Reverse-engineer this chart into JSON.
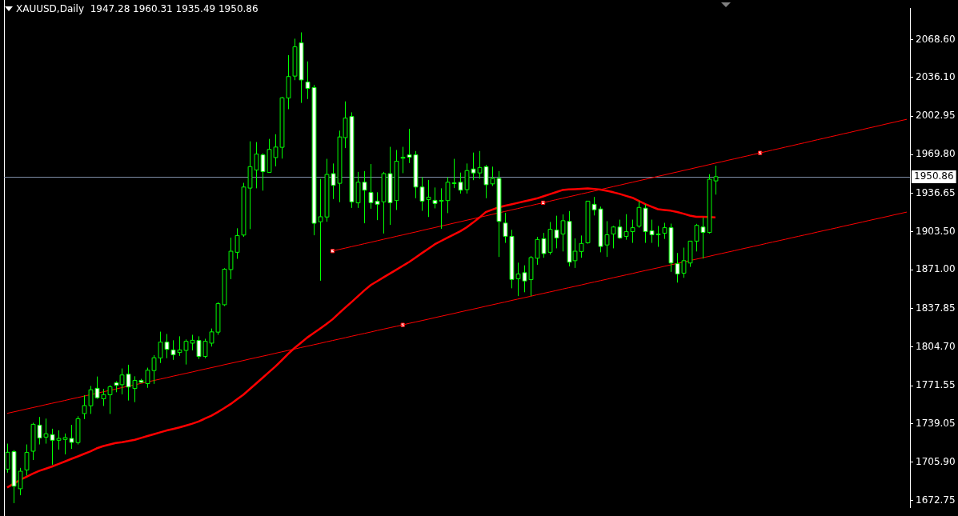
{
  "chart_data": {
    "type": "candlestick",
    "title": "XAUUSD,Daily  1947.28 1960.31 1935.49 1950.86",
    "color": "#00ff00",
    "colors": [
      "#000000",
      "#ffffff",
      "#000000",
      "#000000",
      "#000000",
      "#ffffff",
      "#000000",
      "#ffffff",
      "#000000",
      "#000000",
      "#ffffff",
      "#000000",
      "#000000",
      "#000000",
      "#ffffff",
      "#000000",
      "#000000",
      "#ffffff",
      "#000000",
      "#ffffff",
      "#000000",
      "#ffffff",
      "#000000",
      "#000000",
      "#000000",
      "#ffffff",
      "#ffffff",
      "#000000",
      "#000000",
      "#000000",
      "#ffffff",
      "#000000",
      "#000000",
      "#000000",
      "#000000",
      "#000000",
      "#000000",
      "#000000",
      "#000000",
      "#000000",
      "#ffffff",
      "#000000",
      "#000000",
      "#000000",
      "#000000",
      "#000000",
      "#ffffff",
      "#ffffff",
      "#ffffff",
      "#000000",
      "#000000",
      "#ffffff",
      "#000000",
      "#000000",
      "#ffffff",
      "#000000",
      "#ffffff",
      "#ffffff",
      "#ffffff",
      "#000000",
      "#ffffff",
      "#000000",
      "#000000",
      "#ffffff",
      "#ffffff",
      "#ffffff",
      "#000000",
      "#ffffff",
      "#000000",
      "#000000",
      "#000000",
      "#ffffff",
      "#000000",
      "#ffffff",
      "#000000",
      "#ffffff",
      "#000000",
      "#ffffff",
      "#ffffff",
      "#ffffff",
      "#000000",
      "#ffffff",
      "#000000",
      "#000000",
      "#ffffff",
      "#000000",
      "#ffffff",
      "#000000",
      "#ffffff",
      "#000000",
      "#000000",
      "#000000",
      "#ffffff",
      "#ffffff",
      "#000000",
      "#000000",
      "#ffffff",
      "#000000",
      "#000000",
      "#000000",
      "#ffffff",
      "#ffffff",
      "#000000",
      "#000000",
      "#ffffff",
      "#ffffff",
      "#000000",
      "#000000",
      "#000000",
      "#ffffff",
      "#000000",
      "#000000",
      null,
      null,
      null,
      null,
      null,
      null,
      null,
      null,
      null,
      null,
      null,
      null,
      null,
      null,
      null,
      null,
      null,
      null,
      null,
      null,
      null,
      null,
      null,
      null,
      null,
      null,
      null,
      null,
      null,
      null
    ],
    "categories": [
      null,
      null,
      null,
      null,
      null,
      null,
      null,
      null,
      null,
      null,
      null,
      null,
      null,
      null,
      null,
      null,
      null,
      null,
      null,
      null,
      null,
      null,
      null,
      null,
      null,
      null,
      null,
      null,
      null,
      null,
      null,
      null,
      null,
      null,
      null,
      null,
      null,
      null,
      null,
      null,
      null,
      null,
      null,
      null,
      null,
      null,
      null,
      null,
      null,
      null,
      null,
      null,
      null,
      null,
      null,
      null,
      null,
      null,
      null,
      null,
      null,
      null,
      null,
      null,
      null,
      null,
      null,
      null,
      null,
      null,
      null,
      null,
      null,
      null,
      null,
      null,
      null,
      null,
      null,
      null,
      null,
      null,
      null,
      null,
      null,
      null,
      null,
      null,
      null,
      null,
      null,
      null,
      null,
      null,
      null,
      null,
      null,
      null,
      null,
      null,
      null,
      null,
      null,
      null,
      null,
      null,
      null,
      null,
      null,
      null,
      null,
      null,
      null,
      null,
      null,
      null,
      null,
      null,
      null,
      null,
      null,
      null,
      null,
      null,
      null,
      null,
      null,
      null,
      null,
      null,
      null,
      null,
      null,
      null,
      null,
      null,
      null,
      null,
      null,
      null,
      null,
      null
    ],
    "ohlc": [
      [
        1699.9,
        1721.8,
        1696.9,
        1714.4
      ],
      [
        1714.9,
        1716.2,
        1670.7,
        1685.3
      ],
      [
        1683.1,
        1701.0,
        1677.5,
        1698.1
      ],
      [
        1699.2,
        1721.1,
        1694.3,
        1714.2
      ],
      [
        1715.3,
        1739.7,
        1707.7,
        1738.4
      ],
      [
        1737.7,
        1744.7,
        1721.1,
        1726.7
      ],
      [
        1727.4,
        1743.3,
        1721.8,
        1730.3
      ],
      [
        1729.6,
        1734.6,
        1703.7,
        1724.7
      ],
      [
        1724.7,
        1733.2,
        1716.7,
        1726.3
      ],
      [
        1725.4,
        1730.5,
        1712.6,
        1727.0
      ],
      [
        1726.3,
        1737.9,
        1717.3,
        1722.9
      ],
      [
        1722.7,
        1745.3,
        1721.1,
        1743.1
      ],
      [
        1747.6,
        1763.3,
        1742.9,
        1754.5
      ],
      [
        1754.3,
        1771.3,
        1747.3,
        1768.0
      ],
      [
        1769.3,
        1779.4,
        1760.3,
        1761.2
      ],
      [
        1760.3,
        1768.8,
        1754.1,
        1763.9
      ],
      [
        1763.7,
        1772.0,
        1747.3,
        1770.6
      ],
      [
        1774.0,
        1775.3,
        1765.9,
        1771.8
      ],
      [
        1772.4,
        1786.3,
        1764.1,
        1780.7
      ],
      [
        1781.4,
        1789.5,
        1758.8,
        1770.4
      ],
      [
        1769.1,
        1779.6,
        1757.4,
        1776.0
      ],
      [
        1776.0,
        1777.4,
        1773.8,
        1774.4
      ],
      [
        1773.3,
        1787.0,
        1769.7,
        1784.8
      ],
      [
        1784.5,
        1797.7,
        1773.1,
        1795.5
      ],
      [
        1795.3,
        1817.9,
        1791.0,
        1808.9
      ],
      [
        1808.9,
        1815.9,
        1795.1,
        1802.7
      ],
      [
        1802.2,
        1810.5,
        1793.7,
        1798.0
      ],
      [
        1800.0,
        1813.9,
        1797.1,
        1802.2
      ],
      [
        1801.8,
        1811.2,
        1789.7,
        1809.6
      ],
      [
        1808.0,
        1815.2,
        1801.8,
        1810.5
      ],
      [
        1810.3,
        1813.9,
        1794.4,
        1796.6
      ],
      [
        1796.6,
        1811.8,
        1795.1,
        1809.6
      ],
      [
        1808.0,
        1820.6,
        1805.1,
        1817.7
      ],
      [
        1817.5,
        1843.2,
        1815.2,
        1841.9
      ],
      [
        1841.0,
        1872.4,
        1839.9,
        1871.5
      ],
      [
        1871.2,
        1898.6,
        1862.9,
        1886.9
      ],
      [
        1886.0,
        1906.6,
        1880.4,
        1900.4
      ],
      [
        1900.8,
        1945.6,
        1899.2,
        1942.0
      ],
      [
        1941.1,
        1981.2,
        1905.9,
        1959.5
      ],
      [
        1956.6,
        1980.6,
        1940.9,
        1970.3
      ],
      [
        1969.6,
        1970.9,
        1938.9,
        1955.2
      ],
      [
        1954.6,
        1983.3,
        1954.6,
        1974.3
      ],
      [
        1967.3,
        1987.3,
        1959.7,
        1976.3
      ],
      [
        1976.1,
        2019.3,
        1966.4,
        2018.6
      ],
      [
        2018.4,
        2055.2,
        2008.8,
        2036.8
      ],
      [
        2037.2,
        2069.3,
        2033.7,
        2062.3
      ],
      [
        2065.7,
        2074.7,
        2014.2,
        2033.9
      ],
      [
        2032.1,
        2049.8,
        2017.5,
        2026.7
      ],
      [
        2027.4,
        2029.6,
        1900.6,
        1910.9
      ],
      [
        1912.2,
        1949.0,
        1861.6,
        1916.5
      ],
      [
        1916.3,
        1966.2,
        1912.2,
        1952.8
      ],
      [
        1953.5,
        1962.2,
        1931.7,
        1943.4
      ],
      [
        1945.2,
        1990.4,
        1929.0,
        1985.0
      ],
      [
        1984.4,
        2015.5,
        1975.4,
        2001.2
      ],
      [
        2002.5,
        2006.1,
        1924.1,
        1929.3
      ],
      [
        1928.4,
        1955.0,
        1924.1,
        1946.1
      ],
      [
        1946.1,
        1955.7,
        1910.9,
        1939.3
      ],
      [
        1937.3,
        1961.7,
        1923.4,
        1928.6
      ],
      [
        1929.9,
        1937.5,
        1913.6,
        1927.2
      ],
      [
        1929.3,
        1955.0,
        1902.1,
        1953.5
      ],
      [
        1953.5,
        1976.5,
        1909.5,
        1928.6
      ],
      [
        1930.4,
        1973.8,
        1922.3,
        1964.2
      ],
      [
        1966.7,
        1976.5,
        1953.9,
        1967.6
      ],
      [
        1969.6,
        1992.0,
        1962.6,
        1967.6
      ],
      [
        1969.6,
        1972.9,
        1932.4,
        1942.0
      ],
      [
        1942.0,
        1950.5,
        1921.6,
        1929.9
      ],
      [
        1931.3,
        1948.1,
        1916.3,
        1933.3
      ],
      [
        1930.6,
        1941.6,
        1923.7,
        1927.9
      ],
      [
        1929.9,
        1940.9,
        1906.2,
        1930.6
      ],
      [
        1930.4,
        1950.5,
        1919.6,
        1946.1
      ],
      [
        1945.2,
        1966.2,
        1941.1,
        1945.6
      ],
      [
        1946.1,
        1954.4,
        1936.4,
        1939.3
      ],
      [
        1939.8,
        1962.2,
        1936.4,
        1956.1
      ],
      [
        1957.5,
        1971.6,
        1947.9,
        1954.1
      ],
      [
        1954.1,
        1972.9,
        1949.2,
        1958.8
      ],
      [
        1959.5,
        1960.9,
        1932.4,
        1944.0
      ],
      [
        1944.7,
        1959.5,
        1942.9,
        1949.4
      ],
      [
        1949.4,
        1955.7,
        1882.0,
        1912.5
      ],
      [
        1911.1,
        1919.8,
        1894.1,
        1899.7
      ],
      [
        1899.7,
        1905.3,
        1855.1,
        1862.7
      ],
      [
        1863.2,
        1877.1,
        1848.4,
        1867.4
      ],
      [
        1868.5,
        1874.8,
        1851.7,
        1861.4
      ],
      [
        1862.5,
        1882.9,
        1848.4,
        1881.5
      ],
      [
        1880.9,
        1899.2,
        1875.3,
        1897.0
      ],
      [
        1897.7,
        1902.6,
        1881.3,
        1884.9
      ],
      [
        1886.0,
        1912.0,
        1884.0,
        1905.7
      ],
      [
        1905.1,
        1917.4,
        1889.4,
        1898.3
      ],
      [
        1901.7,
        1918.5,
        1886.7,
        1913.1
      ],
      [
        1912.5,
        1921.4,
        1873.9,
        1877.5
      ],
      [
        1878.8,
        1897.9,
        1872.6,
        1886.9
      ],
      [
        1886.7,
        1900.4,
        1881.3,
        1893.6
      ],
      [
        1894.1,
        1929.9,
        1893.4,
        1929.9
      ],
      [
        1927.2,
        1933.5,
        1917.6,
        1922.5
      ],
      [
        1923.2,
        1925.2,
        1886.0,
        1891.0
      ],
      [
        1892.3,
        1912.7,
        1882.0,
        1901.0
      ],
      [
        1901.7,
        1908.6,
        1889.4,
        1907.7
      ],
      [
        1907.7,
        1914.0,
        1897.5,
        1898.3
      ],
      [
        1899.7,
        1918.7,
        1896.8,
        1903.7
      ],
      [
        1903.7,
        1914.0,
        1894.1,
        1907.1
      ],
      [
        1908.4,
        1929.9,
        1907.1,
        1924.5
      ],
      [
        1923.9,
        1927.2,
        1894.1,
        1903.7
      ],
      [
        1904.4,
        1914.0,
        1894.1,
        1901.0
      ],
      [
        1901.7,
        1908.6,
        1890.7,
        1901.7
      ],
      [
        1902.4,
        1911.3,
        1897.5,
        1907.1
      ],
      [
        1907.1,
        1910.6,
        1869.2,
        1876.8
      ],
      [
        1876.2,
        1885.4,
        1860.0,
        1867.4
      ],
      [
        1868.1,
        1890.0,
        1864.1,
        1878.8
      ],
      [
        1876.8,
        1895.6,
        1873.5,
        1895.6
      ],
      [
        1895.6,
        1910.4,
        1886.7,
        1909.1
      ],
      [
        1907.7,
        1915.8,
        1880.6,
        1903.0
      ],
      [
        1903.0,
        1953.0,
        1902.1,
        1948.7
      ],
      [
        1947.28,
        1960.31,
        1935.49,
        1950.86
      ],
      null,
      null,
      null,
      null,
      null,
      null,
      null,
      null,
      null,
      null,
      null,
      null,
      null,
      null,
      null,
      null,
      null,
      null,
      null,
      null,
      null,
      null,
      null,
      null,
      null,
      null,
      null,
      null,
      null,
      null
    ],
    "series": [
      {
        "type": "line",
        "color": "#ff0000",
        "marker": "none",
        "values": [
          1684.2,
          1687.4,
          1690.6,
          1693.3,
          1696.0,
          1698.4,
          1700.2,
          1702.1,
          1704.2,
          1706.4,
          1708.6,
          1710.7,
          1712.9,
          1715.1,
          1717.7,
          1719.6,
          1721.0,
          1722.4,
          1723.1,
          1724.0,
          1725.1,
          1726.7,
          1728.3,
          1729.9,
          1731.5,
          1733.1,
          1734.4,
          1735.7,
          1737.3,
          1738.9,
          1740.8,
          1743.3,
          1745.8,
          1748.9,
          1752.2,
          1755.7,
          1759.7,
          1763.7,
          1768.5,
          1773.3,
          1778.1,
          1783.0,
          1787.8,
          1793.2,
          1798.6,
          1803.7,
          1808.2,
          1812.7,
          1816.6,
          1820.3,
          1824.3,
          1828.5,
          1833.6,
          1838.6,
          1843.4,
          1848.4,
          1853.4,
          1857.9,
          1861.2,
          1864.5,
          1867.8,
          1871.1,
          1874.4,
          1877.7,
          1881.5,
          1885.3,
          1889.0,
          1892.8,
          1895.7,
          1898.5,
          1901.3,
          1904.0,
          1907.4,
          1911.4,
          1915.7,
          1920.5,
          1922.5,
          1924.5,
          1925.9,
          1927.1,
          1928.4,
          1929.7,
          1930.9,
          1932.2,
          1934.0,
          1935.8,
          1937.6,
          1939.4,
          1939.9,
          1940.2,
          1940.5,
          1940.8,
          1940.4,
          1939.8,
          1938.7,
          1937.5,
          1936.1,
          1934.4,
          1932.8,
          1930.1,
          1927.4,
          1925.1,
          1923.0,
          1922.3,
          1921.7,
          1920.6,
          1919.1,
          1917.5,
          1916.5,
          1916.4,
          1916.2,
          1916.0,
          null,
          null,
          null,
          null,
          null,
          null,
          null,
          null,
          null,
          null,
          null,
          null,
          null,
          null,
          null,
          null,
          null,
          null,
          null,
          null,
          null,
          null,
          null,
          null,
          null,
          null,
          null,
          null,
          null,
          null
        ]
      },
      {
        "type": "line",
        "color": "#ff0000",
        "marker": "none",
        "values": [
          1747.8,
          1749.0,
          1750.2,
          1751.5,
          1752.7,
          1753.9,
          1755.2,
          1756.4,
          1757.6,
          1758.8,
          1760.1,
          1761.3,
          1762.5,
          1763.7,
          1765.0,
          1766.2,
          1767.4,
          1768.6,
          1769.9,
          1771.1,
          1772.3,
          1773.5,
          1774.8,
          1776.0,
          1777.2,
          1778.4,
          1779.7,
          1780.9,
          1782.1,
          1783.3,
          1784.6,
          1785.8,
          1787.0,
          1788.2,
          1789.5,
          1790.7,
          1791.9,
          1793.1,
          1794.4,
          1795.6,
          1796.8,
          1798.0,
          1799.3,
          1800.5,
          1801.7,
          1802.9,
          1804.2,
          1805.4,
          1806.6,
          1807.8,
          1809.1,
          1810.3,
          1811.5,
          1812.7,
          1814.0,
          1815.2,
          1816.4,
          1817.6,
          1818.9,
          1820.1,
          1821.3,
          1822.5,
          1823.7,
          1825.0,
          1826.2,
          1827.4,
          1828.6,
          1829.9,
          1831.1,
          1832.3,
          1833.5,
          1834.8,
          1836.0,
          1837.2,
          1838.4,
          1839.7,
          1840.9,
          1842.1,
          1843.3,
          1844.6,
          1845.8,
          1847.0,
          1848.2,
          1849.5,
          1850.7,
          1851.9,
          1853.1,
          1854.4,
          1855.6,
          1856.8,
          1858.0,
          1859.3,
          1860.5,
          1861.7,
          1862.9,
          1864.2,
          1865.4,
          1866.6,
          1867.8,
          1869.1,
          1870.3,
          1871.5,
          1872.7,
          1874.0,
          1875.2,
          1876.4,
          1877.6,
          1878.9,
          1880.1,
          1881.3,
          1882.5,
          1883.8,
          1885.0,
          1886.2,
          1887.4,
          1888.7,
          1889.9,
          1891.1,
          1892.3,
          1893.6,
          1894.8,
          1896.0,
          1897.2,
          1898.5,
          1899.7,
          1900.9,
          1902.1,
          1903.4,
          1904.6,
          1905.8,
          1907.0,
          1908.3,
          1909.5,
          1910.7,
          1911.9,
          1913.2,
          1914.4,
          1915.6,
          1916.8,
          1918.1,
          1919.3,
          1920.5
        ]
      },
      {
        "type": "line",
        "color": "#ff0000",
        "marker": "none",
        "values": [
          null,
          null,
          null,
          null,
          null,
          null,
          null,
          null,
          null,
          null,
          null,
          null,
          null,
          null,
          null,
          null,
          null,
          null,
          null,
          null,
          null,
          null,
          null,
          null,
          null,
          null,
          null,
          null,
          null,
          null,
          null,
          null,
          null,
          null,
          null,
          null,
          null,
          null,
          null,
          null,
          null,
          null,
          null,
          null,
          null,
          null,
          null,
          null,
          null,
          null,
          null,
          1887.1,
          1888.4,
          1889.6,
          1890.9,
          1892.1,
          1893.4,
          1894.6,
          1895.9,
          1897.2,
          1898.4,
          1899.7,
          1900.9,
          1902.2,
          1903.4,
          1904.7,
          1906.0,
          1907.2,
          1908.5,
          1909.7,
          1911.0,
          1912.2,
          1913.5,
          1914.7,
          1916.0,
          1917.2,
          1918.5,
          1919.8,
          1921.0,
          1922.3,
          1923.5,
          1924.8,
          1926.0,
          1927.3,
          1928.5,
          1929.8,
          1931.1,
          1932.3,
          1933.6,
          1934.8,
          1936.1,
          1937.3,
          1938.6,
          1939.9,
          1941.1,
          1942.4,
          1943.6,
          1944.9,
          1946.1,
          1947.4,
          1948.6,
          1949.9,
          1951.2,
          1952.4,
          1953.7,
          1954.9,
          1956.2,
          1957.4,
          1958.7,
          1959.9,
          1961.2,
          1962.5,
          1963.7,
          1965.0,
          1966.2,
          1967.5,
          1968.7,
          1970.0,
          1971.3,
          1972.5,
          1973.8,
          1975.0,
          1976.3,
          1977.5,
          1978.8,
          1980.0,
          1981.3,
          1982.6,
          1983.8,
          1985.1,
          1986.3,
          1987.6,
          1988.8,
          1990.1,
          1991.3,
          1992.6,
          1993.8,
          1995.1,
          1996.4,
          1997.6,
          1998.9,
          2000.1
        ]
      },
      {
        "type": "scatter",
        "color": "#ffffff",
        "marker": "square",
        "values": [
          null,
          null,
          null,
          null,
          null,
          null,
          null,
          null,
          null,
          null,
          null,
          null,
          null,
          null,
          null,
          null,
          null,
          null,
          null,
          null,
          null,
          null,
          null,
          null,
          null,
          null,
          null,
          null,
          null,
          null,
          null,
          null,
          null,
          null,
          null,
          null,
          null,
          null,
          null,
          null,
          null,
          null,
          null,
          null,
          null,
          null,
          null,
          null,
          null,
          null,
          null,
          1887.1,
          null,
          null,
          null,
          null,
          null,
          null,
          null,
          null,
          null,
          null,
          1823.7,
          null,
          null,
          null,
          null,
          null,
          null,
          null,
          null,
          null,
          null,
          null,
          null,
          null,
          null,
          null,
          null,
          null,
          null,
          null,
          null,
          null,
          1928.5,
          null,
          null,
          null,
          null,
          null,
          null,
          null,
          null,
          null,
          null,
          null,
          null,
          null,
          null,
          null,
          null,
          null,
          null,
          null,
          null,
          null,
          null,
          null,
          null,
          null,
          null,
          null,
          null,
          null,
          null,
          null,
          null,
          null,
          1971.3,
          null,
          null,
          null,
          null,
          null,
          null,
          null,
          null,
          null,
          null,
          null,
          null,
          null,
          null,
          null,
          null,
          null,
          null,
          null,
          null,
          null,
          null,
          null
        ]
      }
    ],
    "ylim": [
      1666.7,
      2095.5
    ],
    "yticks": [
      {
        "value": 1672.75,
        "label": "1672.75"
      },
      {
        "value": 1705.9,
        "label": "1705.90"
      },
      {
        "value": 1739.05,
        "label": "1739.05"
      },
      {
        "value": 1771.55,
        "label": "1771.55"
      },
      {
        "value": 1804.7,
        "label": "1804.70"
      },
      {
        "value": 1837.85,
        "label": "1837.85"
      },
      {
        "value": 1871.0,
        "label": "1871.00"
      },
      {
        "value": 1903.5,
        "label": "1903.50"
      },
      {
        "value": 1936.65,
        "label": "1936.65"
      },
      {
        "value": 1969.8,
        "label": "1969.80"
      },
      {
        "value": 2002.95,
        "label": "2002.95"
      },
      {
        "value": 2036.1,
        "label": "2036.10"
      },
      {
        "value": 2068.6,
        "label": "2068.60"
      }
    ],
    "ref_lines": [
      {
        "axis": "y",
        "value": 1950.86,
        "label": "1950.86",
        "color": "#7f8ea8"
      }
    ],
    "tick_labels": "y",
    "grid": false,
    "legend": false
  }
}
